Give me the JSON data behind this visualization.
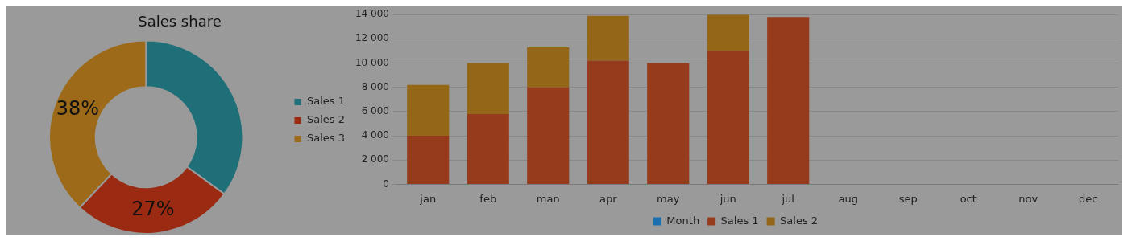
{
  "chart_data": [
    {
      "type": "donut",
      "title": "Sales share",
      "categories": [
        "Sales 1",
        "Sales 2",
        "Sales 3"
      ],
      "values": [
        35,
        27,
        38
      ],
      "colors": [
        "#1e6f78",
        "#9a2a12",
        "#9c6a18"
      ],
      "value_labels": [
        null,
        "27%",
        "38%"
      ],
      "legend": "right"
    },
    {
      "type": "bar",
      "stacked": true,
      "categories": [
        "jan",
        "feb",
        "man",
        "apr",
        "may",
        "jun",
        "jul",
        "aug",
        "sep",
        "oct",
        "nov",
        "dec"
      ],
      "series": [
        {
          "name": "Month",
          "color": "#1a6fb0",
          "values": [
            null,
            null,
            null,
            null,
            null,
            null,
            null,
            null,
            null,
            null,
            null,
            null
          ]
        },
        {
          "name": "Sales 1",
          "color": "#963c1c",
          "values": [
            4000,
            5800,
            8000,
            10200,
            10000,
            11000,
            13800,
            null,
            null,
            null,
            null,
            null
          ]
        },
        {
          "name": "Sales 2",
          "color": "#946618",
          "values": [
            4200,
            4200,
            3300,
            3700,
            null,
            3000,
            null,
            null,
            null,
            null,
            null,
            null
          ]
        }
      ],
      "ylim": [
        0,
        14000
      ],
      "yticks": [
        0,
        {
          "value": 2000,
          "label": "2 000"
        },
        {
          "value": 4000,
          "label": "4 000"
        },
        {
          "value": 6000,
          "label": "6 000"
        },
        {
          "value": 8000,
          "label": "8 000"
        },
        {
          "value": 10000,
          "label": "10 000"
        },
        {
          "value": 12000,
          "label": "12 000"
        },
        {
          "value": 14000,
          "label": "14 000"
        }
      ],
      "grid": "y",
      "legend": "bottom"
    }
  ]
}
